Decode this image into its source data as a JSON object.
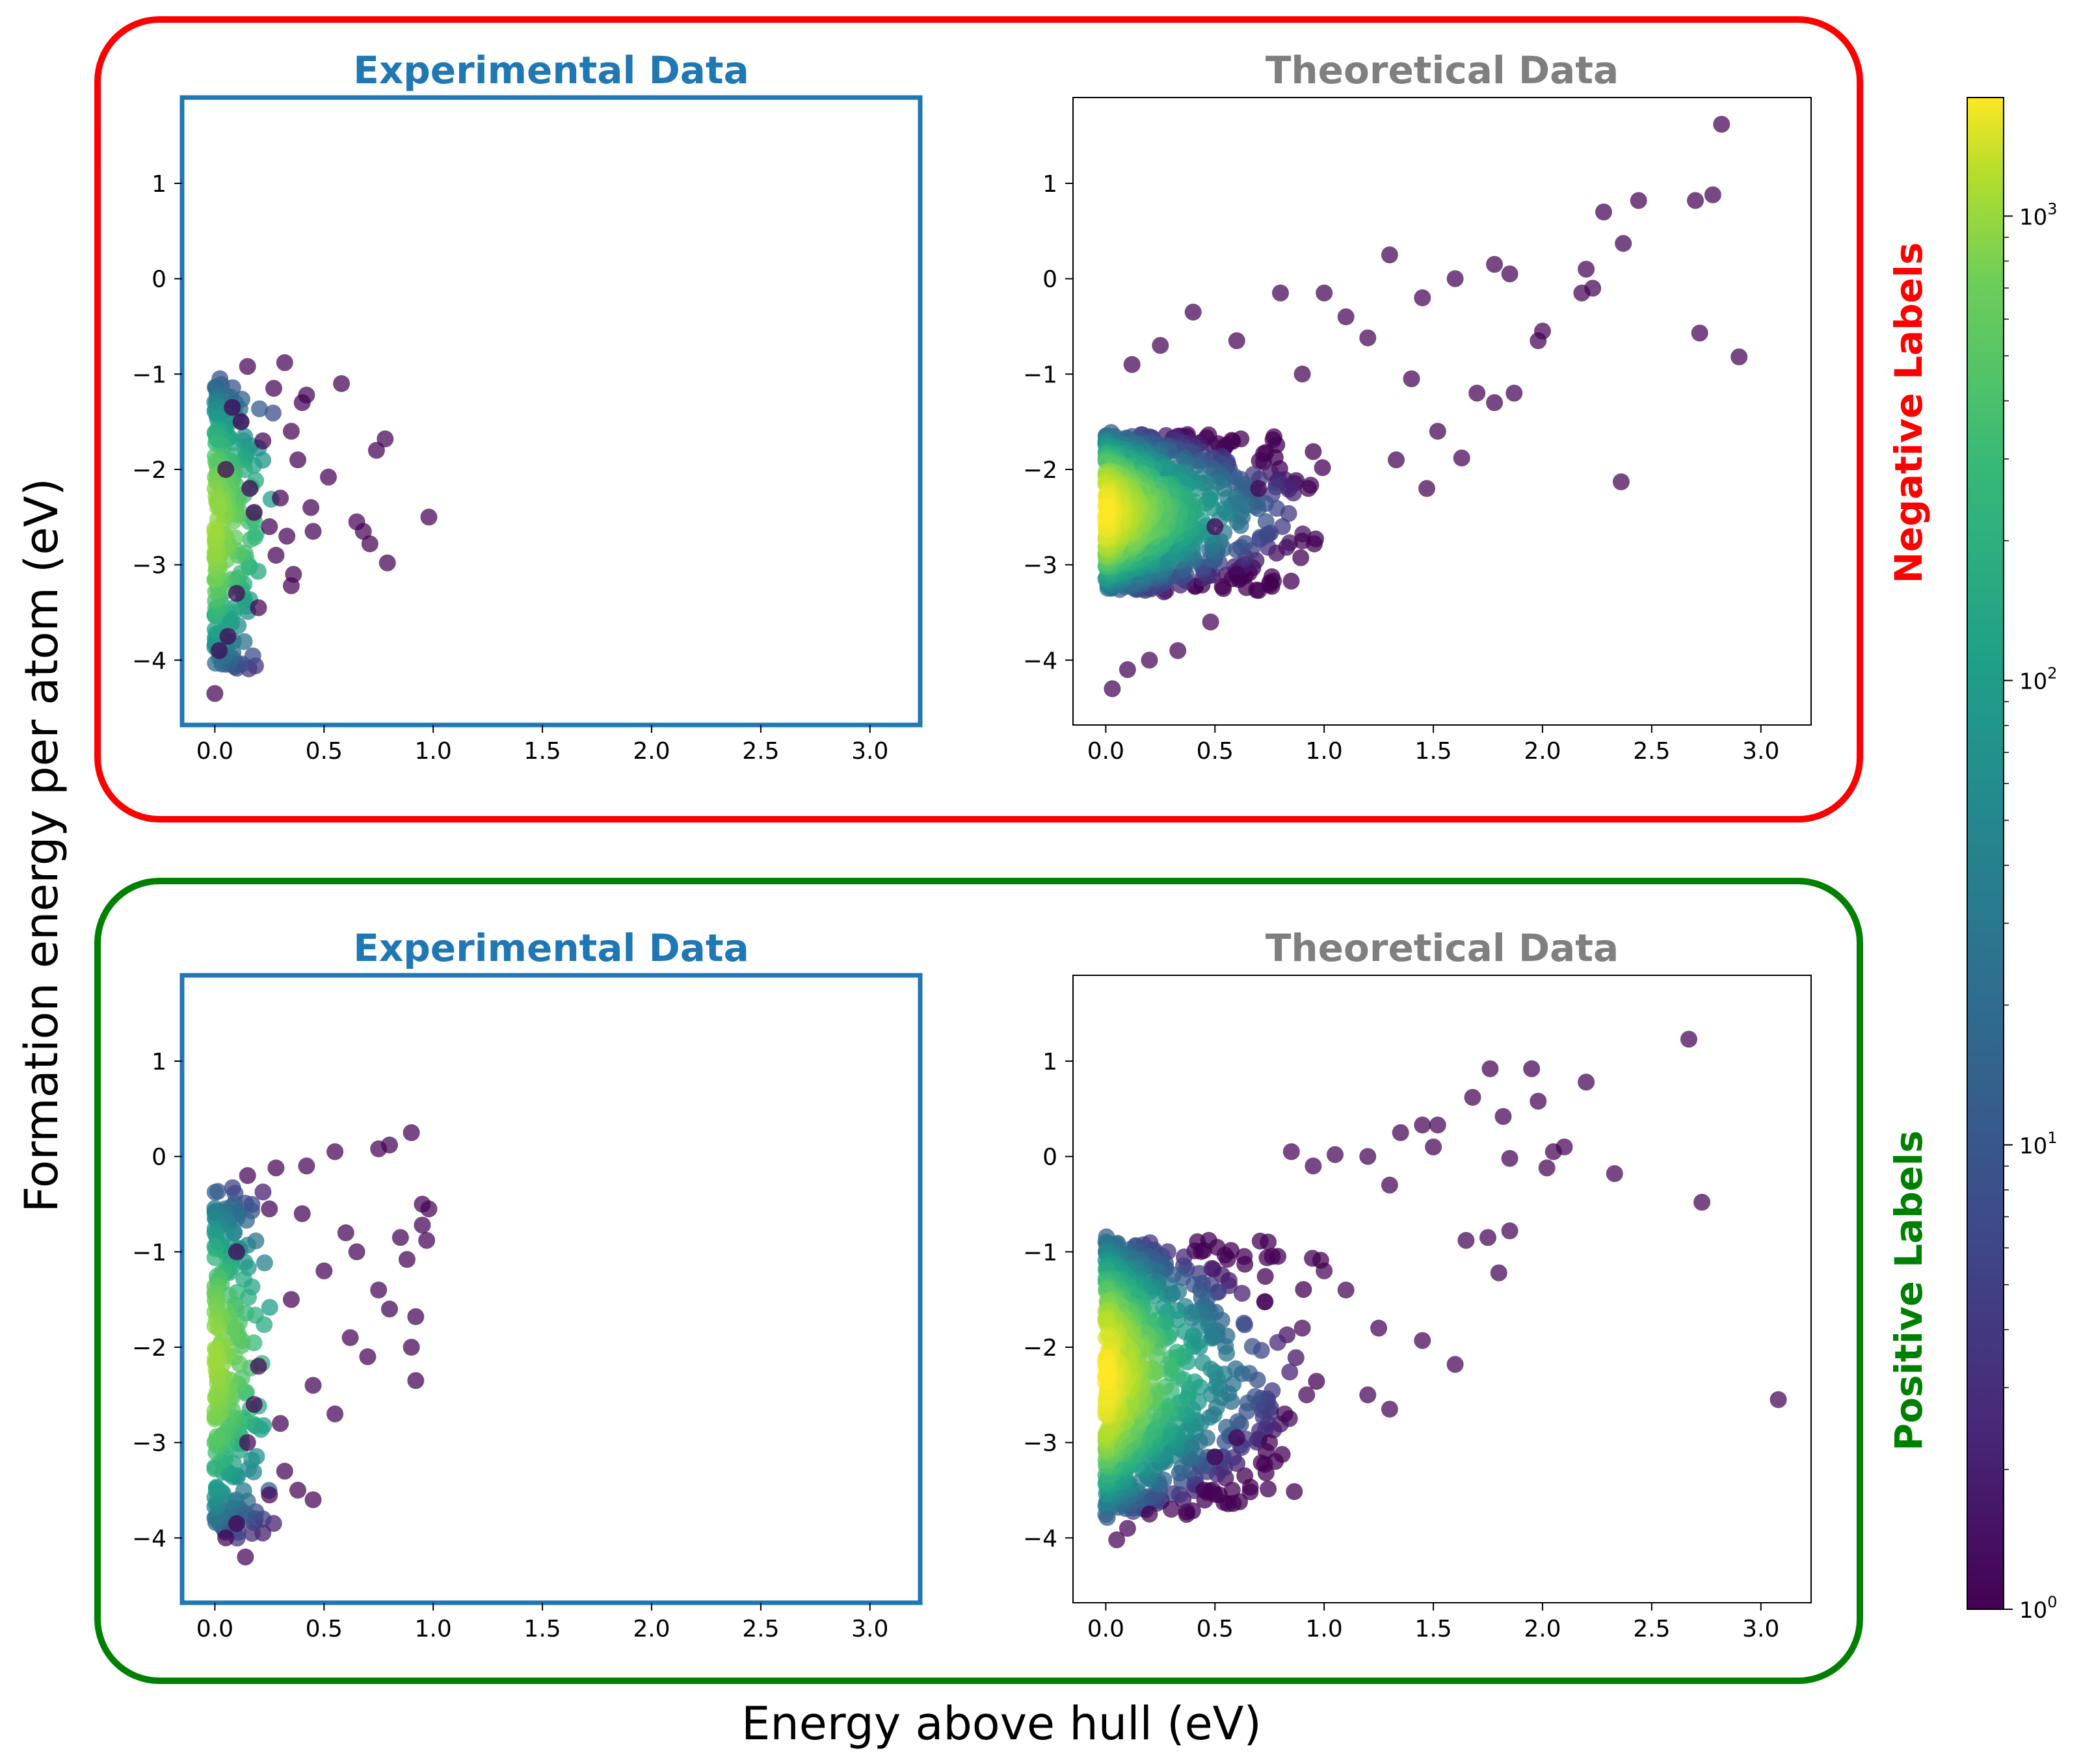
{
  "figure": {
    "xlabel": "Energy above hull (eV)",
    "ylabel": "Formation energy per atom (eV)",
    "colors": {
      "negative": "#ff0000",
      "positive": "#008000",
      "experimental": "#1f77b4",
      "theoretical": "#7f7f7f"
    }
  },
  "groups": [
    {
      "label": "Negative Labels",
      "color": "#ff0000"
    },
    {
      "label": "Positive Labels",
      "color": "#008000"
    }
  ],
  "colorbar": {
    "scale": "log",
    "range": [
      1,
      1800
    ],
    "colormap": "viridis",
    "ticks": [
      {
        "value": 1,
        "base": "10",
        "exp": "0"
      },
      {
        "value": 10,
        "base": "10",
        "exp": "1"
      },
      {
        "value": 100,
        "base": "10",
        "exp": "2"
      },
      {
        "value": 1000,
        "base": "10",
        "exp": "3"
      }
    ]
  },
  "chart_data": [
    {
      "type": "scatter",
      "title": "Experimental Data",
      "group": "Negative Labels",
      "xlim": [
        -0.15,
        3.23
      ],
      "ylim": [
        -4.68,
        1.9
      ],
      "xticks": [
        "0.0",
        "0.5",
        "1.0",
        "1.5",
        "2.0",
        "2.5",
        "3.0"
      ],
      "yticks": [
        "−4",
        "−3",
        "−2",
        "−1",
        "0",
        "1"
      ],
      "color_by": "point density (log scale, viridis)",
      "density_core": {
        "x": [
          0.0,
          0.03
        ],
        "y": [
          -4.0,
          -1.2
        ]
      },
      "points": [
        [
          0.0,
          -4.35
        ],
        [
          0.15,
          -0.92
        ],
        [
          0.32,
          -0.88
        ],
        [
          0.58,
          -1.1
        ],
        [
          0.42,
          -1.22
        ],
        [
          0.27,
          -1.15
        ],
        [
          0.35,
          -1.6
        ],
        [
          0.52,
          -2.08
        ],
        [
          0.65,
          -2.55
        ],
        [
          0.68,
          -2.65
        ],
        [
          0.71,
          -2.78
        ],
        [
          0.79,
          -2.98
        ],
        [
          0.98,
          -2.5
        ],
        [
          0.78,
          -1.68
        ],
        [
          0.74,
          -1.8
        ],
        [
          0.45,
          -2.65
        ],
        [
          0.33,
          -2.7
        ],
        [
          0.35,
          -3.22
        ],
        [
          0.36,
          -3.1
        ],
        [
          0.2,
          -3.45
        ],
        [
          0.38,
          -1.9
        ],
        [
          0.44,
          -2.4
        ],
        [
          0.3,
          -2.3
        ],
        [
          0.25,
          -2.6
        ],
        [
          0.18,
          -2.45
        ],
        [
          0.22,
          -1.7
        ],
        [
          0.12,
          -1.5
        ],
        [
          0.28,
          -2.9
        ],
        [
          0.1,
          -3.3
        ],
        [
          0.06,
          -3.75
        ],
        [
          0.02,
          -3.9
        ],
        [
          0.08,
          -1.35
        ],
        [
          0.4,
          -1.3
        ],
        [
          0.16,
          -2.2
        ],
        [
          0.05,
          -2.0
        ]
      ]
    },
    {
      "type": "scatter",
      "title": "Theoretical Data",
      "group": "Negative Labels",
      "xlim": [
        -0.15,
        3.23
      ],
      "ylim": [
        -4.68,
        1.9
      ],
      "xticks": [
        "0.0",
        "0.5",
        "1.0",
        "1.5",
        "2.0",
        "2.5",
        "3.0"
      ],
      "yticks": [
        "−4",
        "−3",
        "−2",
        "−1",
        "0",
        "1"
      ],
      "color_by": "point density (log scale, viridis)",
      "density_core": {
        "x": [
          0.0,
          0.15
        ],
        "y": [
          -3.2,
          -1.7
        ]
      },
      "points": [
        [
          2.82,
          1.62
        ],
        [
          2.78,
          0.88
        ],
        [
          2.7,
          0.82
        ],
        [
          2.44,
          0.82
        ],
        [
          2.28,
          0.7
        ],
        [
          2.37,
          0.37
        ],
        [
          2.72,
          -0.57
        ],
        [
          2.9,
          -0.82
        ],
        [
          2.36,
          -2.13
        ],
        [
          1.3,
          0.25
        ],
        [
          2.2,
          0.1
        ],
        [
          2.23,
          -0.1
        ],
        [
          2.18,
          -0.15
        ],
        [
          2.0,
          -0.55
        ],
        [
          1.85,
          0.05
        ],
        [
          1.78,
          0.15
        ],
        [
          1.6,
          0.0
        ],
        [
          1.45,
          -0.2
        ],
        [
          1.98,
          -0.65
        ],
        [
          1.87,
          -1.2
        ],
        [
          1.78,
          -1.3
        ],
        [
          1.7,
          -1.2
        ],
        [
          1.52,
          -1.6
        ],
        [
          1.47,
          -2.2
        ],
        [
          1.33,
          -1.9
        ],
        [
          1.63,
          -1.88
        ],
        [
          1.4,
          -1.05
        ],
        [
          1.2,
          -0.62
        ],
        [
          1.0,
          -0.15
        ],
        [
          1.1,
          -0.4
        ],
        [
          0.8,
          -0.15
        ],
        [
          0.6,
          -0.65
        ],
        [
          0.4,
          -0.35
        ],
        [
          0.9,
          -1.0
        ],
        [
          0.7,
          -2.2
        ],
        [
          0.9,
          -2.75
        ],
        [
          0.6,
          -3.1
        ],
        [
          0.48,
          -3.6
        ],
        [
          0.33,
          -3.9
        ],
        [
          0.2,
          -4.0
        ],
        [
          0.1,
          -4.1
        ],
        [
          0.03,
          -4.3
        ],
        [
          0.12,
          -0.9
        ],
        [
          0.25,
          -0.7
        ],
        [
          0.5,
          -2.6
        ]
      ]
    },
    {
      "type": "scatter",
      "title": "Experimental Data",
      "group": "Positive Labels",
      "xlim": [
        -0.15,
        3.23
      ],
      "ylim": [
        -4.68,
        1.9
      ],
      "xticks": [
        "0.0",
        "0.5",
        "1.0",
        "1.5",
        "2.0",
        "2.5",
        "3.0"
      ],
      "yticks": [
        "−4",
        "−3",
        "−2",
        "−1",
        "0",
        "1"
      ],
      "color_by": "point density (log scale, viridis)",
      "density_core": {
        "x": [
          0.0,
          0.06
        ],
        "y": [
          -3.8,
          -0.5
        ]
      },
      "points": [
        [
          0.9,
          0.25
        ],
        [
          0.8,
          0.12
        ],
        [
          0.75,
          0.08
        ],
        [
          0.55,
          0.05
        ],
        [
          0.42,
          -0.1
        ],
        [
          0.28,
          -0.12
        ],
        [
          0.15,
          -0.2
        ],
        [
          0.95,
          -0.5
        ],
        [
          0.98,
          -0.55
        ],
        [
          0.97,
          -0.88
        ],
        [
          0.95,
          -0.72
        ],
        [
          0.88,
          -1.08
        ],
        [
          0.92,
          -1.68
        ],
        [
          0.9,
          -2.0
        ],
        [
          0.92,
          -2.35
        ],
        [
          0.8,
          -1.6
        ],
        [
          0.75,
          -1.4
        ],
        [
          0.7,
          -2.1
        ],
        [
          0.62,
          -1.9
        ],
        [
          0.55,
          -2.7
        ],
        [
          0.45,
          -3.6
        ],
        [
          0.38,
          -3.5
        ],
        [
          0.32,
          -3.3
        ],
        [
          0.25,
          -3.55
        ],
        [
          0.14,
          -4.2
        ],
        [
          0.1,
          -3.85
        ],
        [
          0.05,
          -4.0
        ],
        [
          0.6,
          -0.8
        ],
        [
          0.5,
          -1.2
        ],
        [
          0.35,
          -1.5
        ],
        [
          0.2,
          -2.2
        ],
        [
          0.3,
          -2.8
        ],
        [
          0.15,
          -3.0
        ],
        [
          0.65,
          -1.0
        ],
        [
          0.85,
          -0.85
        ],
        [
          0.4,
          -0.6
        ],
        [
          0.25,
          -0.55
        ],
        [
          0.1,
          -1.0
        ],
        [
          0.18,
          -2.6
        ],
        [
          0.45,
          -2.4
        ]
      ]
    },
    {
      "type": "scatter",
      "title": "Theoretical Data",
      "group": "Positive Labels",
      "xlim": [
        -0.15,
        3.23
      ],
      "ylim": [
        -4.68,
        1.9
      ],
      "xticks": [
        "0.0",
        "0.5",
        "1.0",
        "1.5",
        "2.0",
        "2.5",
        "3.0"
      ],
      "yticks": [
        "−4",
        "−3",
        "−2",
        "−1",
        "0",
        "1"
      ],
      "color_by": "point density (log scale, viridis)",
      "density_core": {
        "x": [
          0.0,
          0.1
        ],
        "y": [
          -3.6,
          -1.0
        ]
      },
      "points": [
        [
          2.67,
          1.23
        ],
        [
          2.2,
          0.78
        ],
        [
          1.95,
          0.92
        ],
        [
          1.76,
          0.92
        ],
        [
          1.98,
          0.58
        ],
        [
          1.82,
          0.42
        ],
        [
          1.68,
          0.62
        ],
        [
          1.52,
          0.33
        ],
        [
          1.45,
          0.33
        ],
        [
          1.35,
          0.25
        ],
        [
          2.73,
          -0.48
        ],
        [
          2.33,
          -0.18
        ],
        [
          2.1,
          0.1
        ],
        [
          2.05,
          0.05
        ],
        [
          2.02,
          -0.12
        ],
        [
          1.85,
          -0.02
        ],
        [
          1.5,
          0.1
        ],
        [
          1.3,
          -0.3
        ],
        [
          1.2,
          0.0
        ],
        [
          1.05,
          0.02
        ],
        [
          0.95,
          -0.1
        ],
        [
          0.85,
          0.05
        ],
        [
          1.65,
          -0.88
        ],
        [
          1.75,
          -0.85
        ],
        [
          1.85,
          -0.78
        ],
        [
          1.8,
          -1.22
        ],
        [
          1.6,
          -2.18
        ],
        [
          1.45,
          -1.93
        ],
        [
          1.3,
          -2.65
        ],
        [
          1.2,
          -2.5
        ],
        [
          3.08,
          -2.55
        ],
        [
          1.25,
          -1.8
        ],
        [
          1.1,
          -1.4
        ],
        [
          1.0,
          -1.2
        ],
        [
          0.9,
          -1.8
        ],
        [
          0.92,
          -2.5
        ],
        [
          0.82,
          -2.7
        ],
        [
          0.75,
          -3.0
        ],
        [
          0.6,
          -2.95
        ],
        [
          0.5,
          -3.15
        ],
        [
          0.45,
          -3.5
        ],
        [
          0.3,
          -3.7
        ],
        [
          0.2,
          -3.75
        ],
        [
          0.1,
          -3.9
        ],
        [
          0.05,
          -4.02
        ]
      ]
    }
  ]
}
